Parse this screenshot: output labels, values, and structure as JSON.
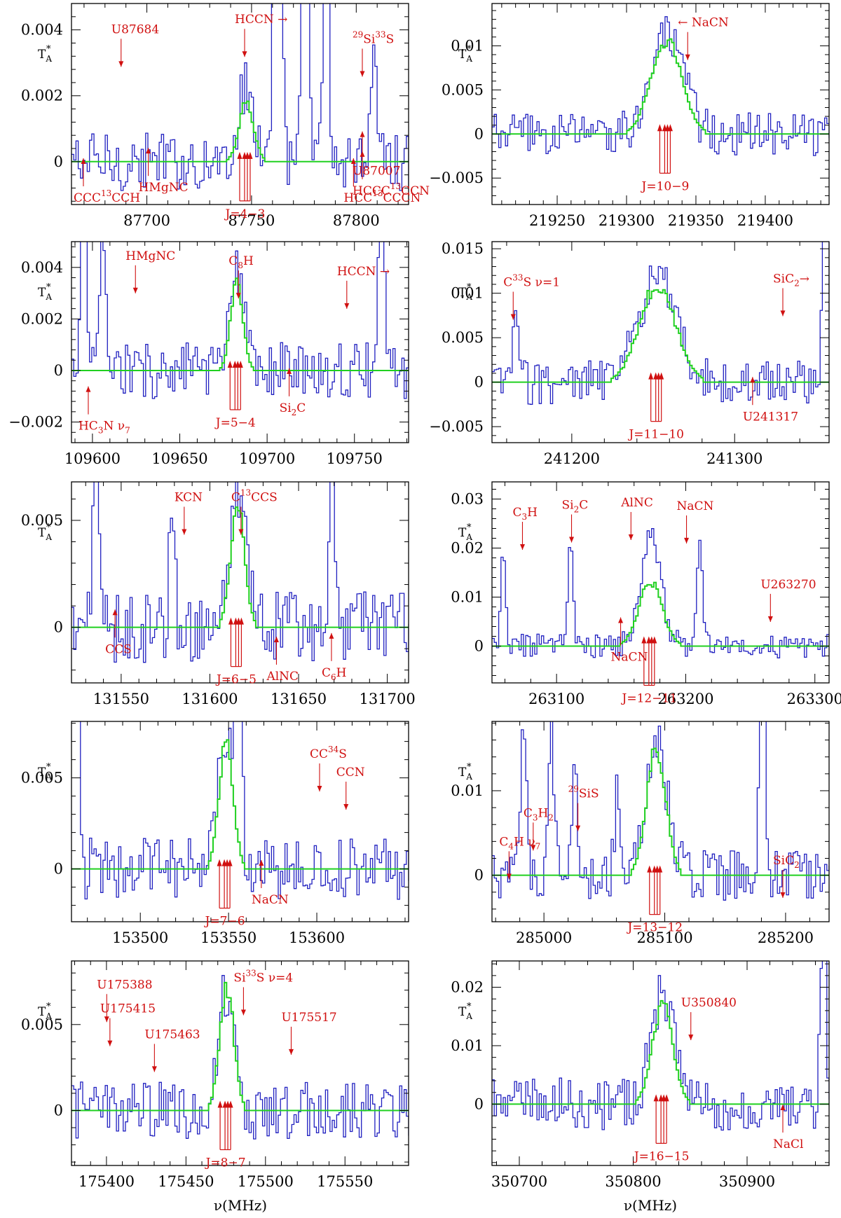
{
  "colors": {
    "observed": "#2020c0",
    "model": "#20d020",
    "annotation": "#d01010",
    "axis": "#000000"
  },
  "chart_data": [
    {
      "id": "p1",
      "type": "line",
      "ylabel": "T",
      "ylabel_sub": "A",
      "ylabel_sup": "*",
      "xlim": [
        87664,
        87825
      ],
      "ylim": [
        -0.0013,
        0.0048
      ],
      "xticks": [
        87700,
        87750,
        87800
      ],
      "xtick_labels": [
        "87700",
        "87750",
        "87800"
      ],
      "yticks": [
        0,
        0.002,
        0.004
      ],
      "ytick_labels": [
        "0",
        "0.002",
        "0.004"
      ],
      "center": 87747,
      "obs_amp": 0.0022,
      "obs_width": 4,
      "noise": 0.0009,
      "model_amp": 0.0018,
      "model_width": 3.5,
      "strong": [
        [
          87762,
          0.03
        ],
        [
          87775,
          0.012
        ],
        [
          87785,
          0.008
        ],
        [
          87808,
          0.004
        ]
      ],
      "series": [
        {
          "name": "observed",
          "color": "blue"
        },
        {
          "name": "model",
          "color": "green"
        }
      ],
      "transition_label": "J=4−3",
      "annotations": [
        {
          "text": "U87684",
          "x": 87683,
          "y": 0.0039
        },
        {
          "text": "HCCN →",
          "x": 87742,
          "y": 0.0042
        },
        {
          "text": "HMgNC",
          "x": 87696,
          "y": -0.0009
        },
        {
          "text": "CCC",
          "sup": "13",
          "tail": "CCH",
          "x": 87665,
          "y": -0.0015
        },
        {
          "text": "U87007",
          "x": 87802,
          "y": -0.0004
        },
        {
          "text": "HCCC",
          "sup": "13",
          "tail": "CCN",
          "x": 87800,
          "y": -0.001
        },
        {
          "text": "HCC",
          "sup": "13",
          "tail": "CCCN",
          "x": 87794,
          "y": -0.0017
        },
        {
          "text": "29",
          "prefix_sup": true,
          "tail": "Si",
          "sup2": "33",
          "tail2": "S",
          "x": 87816,
          "y": 0.0036
        }
      ]
    },
    {
      "id": "p2",
      "type": "line",
      "ylabel": "T",
      "ylabel_sub": "A",
      "ylabel_sup": "*",
      "xlim": [
        219203,
        219446
      ],
      "ylim": [
        -0.008,
        0.0148
      ],
      "xticks": [
        219250,
        219300,
        219350,
        219400
      ],
      "xtick_labels": [
        "219250",
        "219300",
        "219350",
        "219400"
      ],
      "yticks": [
        -0.005,
        0,
        0.005,
        0.01
      ],
      "ytick_labels": [
        "−0.005",
        "0",
        "0.005",
        "0.01"
      ],
      "center": 219328,
      "obs_amp": 0.011,
      "obs_width": 12,
      "noise": 0.0025,
      "model_amp": 0.0105,
      "model_width": 11,
      "strong": [],
      "series": [
        {
          "name": "observed",
          "color": "blue"
        },
        {
          "name": "model",
          "color": "green"
        }
      ],
      "transition_label": "J=10−9",
      "annotations": [
        {
          "text": "← NaCN",
          "x": 219337,
          "y": 0.0122
        }
      ]
    },
    {
      "id": "p3",
      "type": "line",
      "ylabel": "T",
      "ylabel_sub": "A",
      "ylabel_sup": "*",
      "xlim": [
        109588,
        109781
      ],
      "ylim": [
        -0.0028,
        0.005
      ],
      "xticks": [
        109600,
        109650,
        109700,
        109750
      ],
      "xtick_labels": [
        "109600",
        "109650",
        "109700",
        "109750"
      ],
      "yticks": [
        -0.002,
        0,
        0.002,
        0.004
      ],
      "ytick_labels": [
        "−0.002",
        "0",
        "0.002",
        "0.004"
      ],
      "center": 109682,
      "obs_amp": 0.0036,
      "obs_width": 4,
      "noise": 0.0011,
      "model_amp": 0.0034,
      "model_width": 3.5,
      "strong": [
        [
          109594,
          0.008
        ],
        [
          109605,
          0.006
        ],
        [
          109765,
          0.009
        ]
      ],
      "series": [
        {
          "name": "observed",
          "color": "blue"
        },
        {
          "name": "model",
          "color": "green"
        }
      ],
      "transition_label": "J=5−4",
      "annotations": [
        {
          "text": "HMgNC",
          "x": 109619,
          "y": 0.0043
        },
        {
          "text": "C",
          "sub": "8",
          "tail": "H",
          "x": 109678,
          "y": 0.0041
        },
        {
          "text": "HCCN →",
          "x": 109740,
          "y": 0.0037
        },
        {
          "text": "Si",
          "sub": "2",
          "tail": "C",
          "x": 109707,
          "y": -0.0016
        },
        {
          "text": "HC",
          "sub": "3",
          "tail": "N ν",
          "sub2": "7",
          "x": 109592,
          "y": -0.0023
        }
      ]
    },
    {
      "id": "p4",
      "type": "line",
      "ylabel": "T",
      "ylabel_sub": "A",
      "ylabel_sup": "*",
      "xlim": [
        241151,
        241358
      ],
      "ylim": [
        -0.0068,
        0.0158
      ],
      "xticks": [
        241200,
        241300
      ],
      "xtick_labels": [
        "241200",
        "241300"
      ],
      "yticks": [
        -0.005,
        0,
        0.005,
        0.01,
        0.015
      ],
      "ytick_labels": [
        "−0.005",
        "0",
        "0.005",
        "0.01",
        "0.015"
      ],
      "center": 241252,
      "obs_amp": 0.0115,
      "obs_width": 12,
      "noise": 0.0025,
      "model_amp": 0.011,
      "model_width": 11,
      "strong": [
        [
          241165,
          0.007
        ],
        [
          241355,
          0.03
        ]
      ],
      "series": [
        {
          "name": "observed",
          "color": "blue"
        },
        {
          "name": "model",
          "color": "green"
        }
      ],
      "transition_label": "J=11−10",
      "annotations": [
        {
          "text": "C",
          "sup": "33",
          "tail": "S ν=1",
          "x": 241158,
          "y": 0.0108
        },
        {
          "text": "SiC",
          "sub": "2",
          "tail": "→",
          "x": 241336,
          "y": 0.0112
        },
        {
          "text": "U241317",
          "x": 241305,
          "y": -0.0043
        }
      ]
    },
    {
      "id": "p5",
      "type": "line",
      "ylabel": "T",
      "ylabel_sub": "A",
      "ylabel_sup": "*",
      "xlim": [
        131522,
        131712
      ],
      "ylim": [
        -0.0026,
        0.0068
      ],
      "xticks": [
        131550,
        131600,
        131650,
        131700
      ],
      "xtick_labels": [
        "131550",
        "131600",
        "131650",
        "131700"
      ],
      "yticks": [
        0,
        0.005
      ],
      "ytick_labels": [
        "0",
        "0.005"
      ],
      "center": 131615,
      "obs_amp": 0.0058,
      "obs_width": 4.5,
      "noise": 0.0017,
      "model_amp": 0.0057,
      "model_width": 4,
      "strong": [
        [
          131535,
          0.008
        ],
        [
          131578,
          0.006
        ],
        [
          131668,
          0.009
        ]
      ],
      "series": [
        {
          "name": "observed",
          "color": "blue"
        },
        {
          "name": "model",
          "color": "green"
        }
      ],
      "transition_label": "J=6−5",
      "annotations": [
        {
          "text": "KCN",
          "x": 131580,
          "y": 0.0059
        },
        {
          "text": "C",
          "sup": "13",
          "tail": "CCS",
          "x": 131612,
          "y": 0.0059
        },
        {
          "text": "CCS",
          "x": 131541,
          "y": -0.0012
        },
        {
          "text": "AlNC",
          "x": 131632,
          "y": -0.0033
        },
        {
          "text": "C",
          "sub": "6",
          "tail": "H",
          "x": 131663,
          "y": -0.0023
        }
      ]
    },
    {
      "id": "p6",
      "type": "line",
      "ylabel": "T",
      "ylabel_sub": "A",
      "ylabel_sup": "*",
      "xlim": [
        263050,
        263311
      ],
      "ylim": [
        -0.0075,
        0.0335
      ],
      "xticks": [
        263100,
        263200,
        263300
      ],
      "xtick_labels": [
        "263100",
        "263200",
        "263300"
      ],
      "yticks": [
        0,
        0.01,
        0.02,
        0.03
      ],
      "ytick_labels": [
        "0",
        "0.01",
        "0.02",
        "0.03"
      ],
      "center": 263172,
      "obs_amp": 0.022,
      "obs_width": 8,
      "noise": 0.0025,
      "model_amp": 0.013,
      "model_width": 9,
      "strong": [
        [
          263058,
          0.018
        ],
        [
          263110,
          0.02
        ],
        [
          263210,
          0.02
        ]
      ],
      "series": [
        {
          "name": "observed",
          "color": "blue"
        },
        {
          "name": "model",
          "color": "green"
        }
      ],
      "transition_label": "J=12−11",
      "annotations": [
        {
          "text": "C",
          "sub": "3",
          "tail": "H",
          "x": 263066,
          "y": 0.0265
        },
        {
          "text": "Si",
          "sub": "2",
          "tail": "C",
          "x": 263104,
          "y": 0.028
        },
        {
          "text": "AlNC",
          "x": 263150,
          "y": 0.0285
        },
        {
          "text": "NaCN",
          "x": 263193,
          "y": 0.0278
        },
        {
          "text": "U263270",
          "x": 263258,
          "y": 0.0118
        },
        {
          "text": "NaCN",
          "x": 263142,
          "y": -0.003
        }
      ]
    },
    {
      "id": "p7",
      "type": "line",
      "ylabel": "T",
      "ylabel_sub": "A",
      "ylabel_sup": "*",
      "xlim": [
        153461,
        153652
      ],
      "ylim": [
        -0.0029,
        0.0081
      ],
      "xticks": [
        153500,
        153550,
        153600
      ],
      "xtick_labels": [
        "153500",
        "153550",
        "153600"
      ],
      "yticks": [
        0,
        0.005
      ],
      "ytick_labels": [
        "0",
        "0.005"
      ],
      "center": 153548,
      "obs_amp": 0.0072,
      "obs_width": 4.5,
      "noise": 0.0017,
      "model_amp": 0.0071,
      "model_width": 4,
      "strong": [
        [
          153463,
          0.02
        ],
        [
          153555,
          0.03
        ]
      ],
      "series": [
        {
          "name": "observed",
          "color": "blue"
        },
        {
          "name": "model",
          "color": "green"
        }
      ],
      "transition_label": "J=7−6",
      "annotations": [
        {
          "text": "CC",
          "sup": "34",
          "tail": "S",
          "x": 153596,
          "y": 0.0061
        },
        {
          "text": "CCN",
          "x": 153611,
          "y": 0.0051
        },
        {
          "text": "NaCN",
          "x": 153563,
          "y": -0.0019
        }
      ]
    },
    {
      "id": "p8",
      "type": "line",
      "ylabel": "T",
      "ylabel_sub": "A",
      "ylabel_sup": "*",
      "xlim": [
        284957,
        285236
      ],
      "ylim": [
        -0.0055,
        0.0182
      ],
      "xticks": [
        285000,
        285100,
        285200
      ],
      "xtick_labels": [
        "285000",
        "285100",
        "285200"
      ],
      "yticks": [
        0,
        0.01
      ],
      "ytick_labels": [
        "0",
        "0.01"
      ],
      "center": 285092,
      "obs_amp": 0.016,
      "obs_width": 9,
      "noise": 0.003,
      "model_amp": 0.0148,
      "model_width": 8,
      "strong": [
        [
          284982,
          0.02
        ],
        [
          285005,
          0.02
        ],
        [
          285025,
          0.012
        ],
        [
          285060,
          0.01
        ],
        [
          285180,
          0.03
        ]
      ],
      "series": [
        {
          "name": "observed",
          "color": "blue"
        },
        {
          "name": "model",
          "color": "green"
        }
      ],
      "transition_label": "J=13−12",
      "annotations": [
        {
          "text": "C",
          "sub": "4",
          "tail": "H ν",
          "sub2": "7",
          "x": 284963,
          "y": 0.0035
        },
        {
          "text": "C",
          "sub": "3",
          "tail": "H",
          "sub3": "2",
          "x": 284983,
          "y": 0.0069
        },
        {
          "text": "29",
          "prefix_sup": true,
          "tail": "SiS",
          "x": 285020,
          "y": 0.0092
        },
        {
          "text": "SiC",
          "sub": "2",
          "x": 285195,
          "y": 0.0013
        }
      ]
    },
    {
      "id": "p9",
      "type": "line",
      "ylabel": "T",
      "ylabel_sub": "A",
      "ylabel_sup": "*",
      "xlim": [
        175378,
        175590
      ],
      "ylim": [
        -0.0032,
        0.0087
      ],
      "xticks": [
        175400,
        175450,
        175500,
        175550
      ],
      "xtick_labels": [
        "175400",
        "175450",
        "175500",
        "175550"
      ],
      "yticks": [
        0,
        0.005
      ],
      "ytick_labels": [
        "0",
        "0.005"
      ],
      "center": 175475,
      "obs_amp": 0.0072,
      "obs_width": 5,
      "noise": 0.0017,
      "model_amp": 0.0071,
      "model_width": 4.5,
      "strong": [],
      "series": [
        {
          "name": "observed",
          "color": "blue"
        },
        {
          "name": "model",
          "color": "green"
        }
      ],
      "transition_label": "J=8−7",
      "annotations": [
        {
          "text": "U175388",
          "x": 175394,
          "y": 0.0071
        },
        {
          "text": "U175415",
          "x": 175396,
          "y": 0.0057
        },
        {
          "text": "U175463",
          "x": 175424,
          "y": 0.0042
        },
        {
          "text": "Si",
          "sup": "33",
          "tail": "S ν=4",
          "x": 175480,
          "y": 0.0075
        },
        {
          "text": "U175517",
          "x": 175510,
          "y": 0.0052
        }
      ]
    },
    {
      "id": "p10",
      "type": "line",
      "ylabel": "T",
      "ylabel_sub": "A",
      "ylabel_sup": "*",
      "xlim": [
        350676,
        350972
      ],
      "ylim": [
        -0.0105,
        0.0245
      ],
      "xticks": [
        350700,
        350800,
        350900
      ],
      "xtick_labels": [
        "350700",
        "350800",
        "350900"
      ],
      "yticks": [
        0,
        0.01,
        0.02
      ],
      "ytick_labels": [
        "0",
        "0.01",
        "0.02"
      ],
      "center": 350825,
      "obs_amp": 0.019,
      "obs_width": 10,
      "noise": 0.0045,
      "model_amp": 0.017,
      "model_width": 9,
      "strong": [
        [
          350966,
          0.03
        ]
      ],
      "series": [
        {
          "name": "observed",
          "color": "blue"
        },
        {
          "name": "model",
          "color": "green"
        }
      ],
      "transition_label": "J=16−15",
      "annotations": [
        {
          "text": "U350840",
          "x": 350842,
          "y": 0.0167
        },
        {
          "text": "NaCl",
          "x": 350930,
          "y": -0.0075
        }
      ]
    }
  ],
  "shared": {
    "xlabel": "ν(MHz)"
  }
}
